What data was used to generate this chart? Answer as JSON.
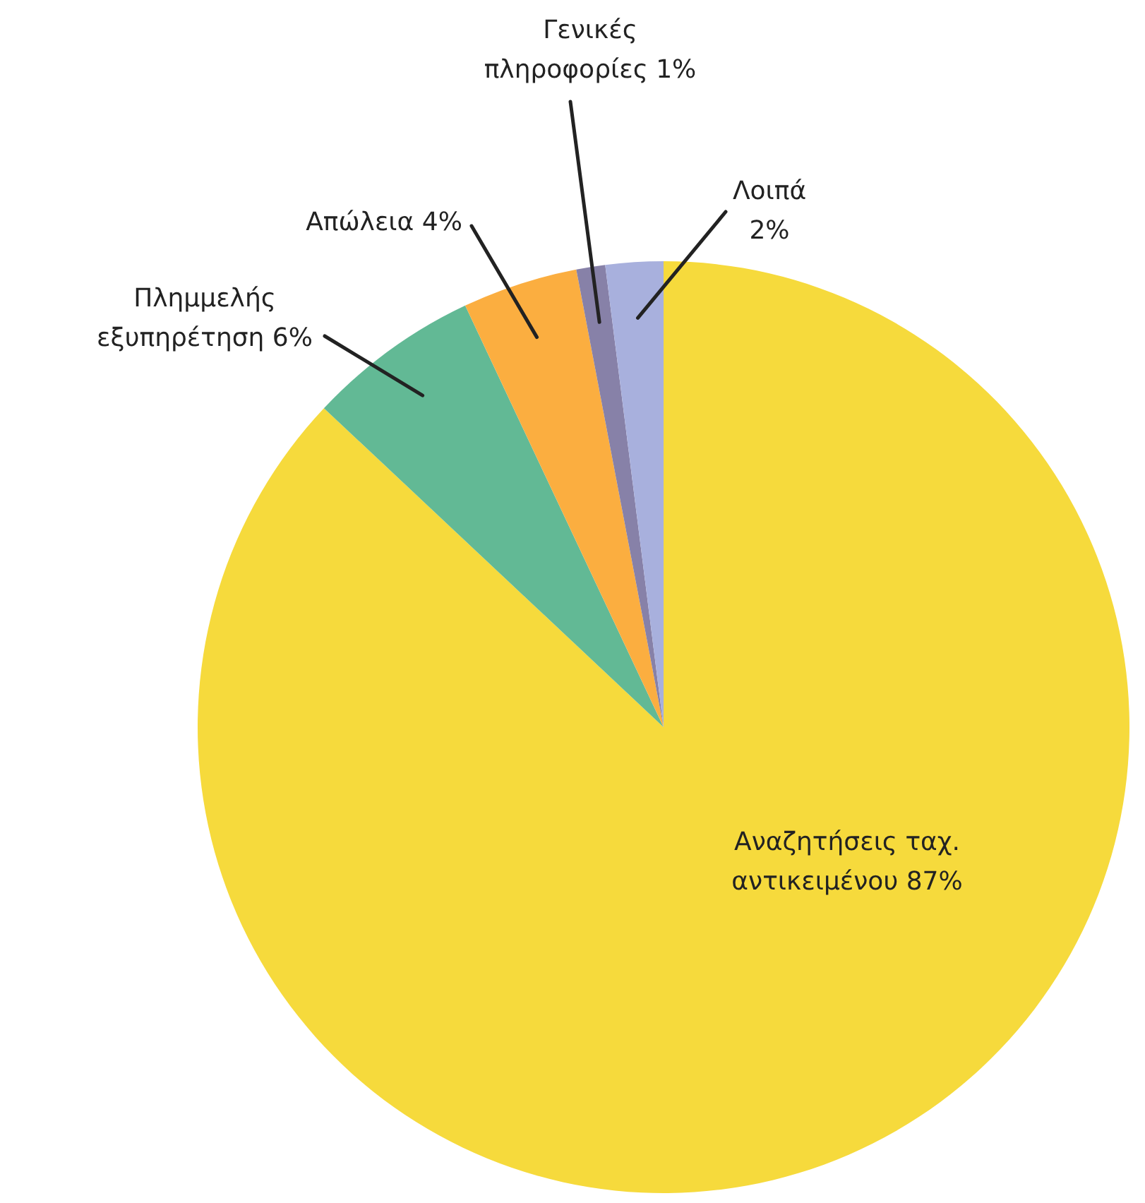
{
  "chart_data": {
    "type": "pie",
    "categories": [
      "Αναζητήσεις ταχ. αντικειμένου",
      "Πλημμελής εξυπηρέτηση",
      "Απώλεια",
      "Γενικές πληροφορίες",
      "Λοιπά"
    ],
    "values": [
      87,
      6,
      4,
      1,
      2
    ],
    "value_labels": [
      "87%",
      "6%",
      "4%",
      "1%",
      "2%"
    ],
    "colors": [
      "#f6da3c",
      "#62b995",
      "#fbae40",
      "#8781a8",
      "#a8b0dd"
    ]
  }
}
